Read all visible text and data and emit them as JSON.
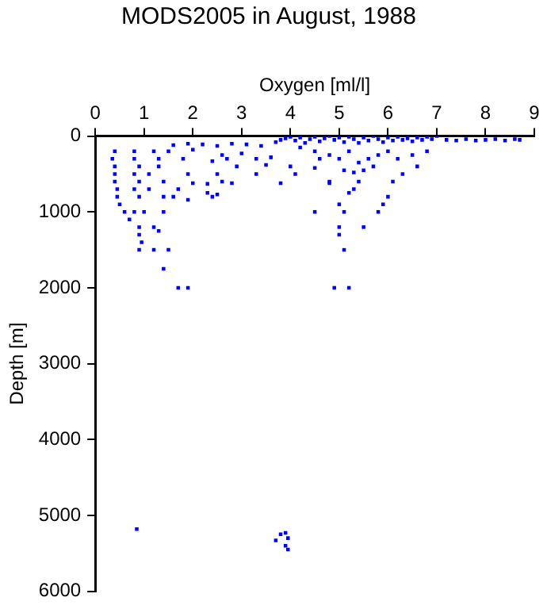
{
  "chart_data": {
    "type": "scatter",
    "title": "MODS2005 in August, 1988",
    "xlabel": "Oxygen [ml/l]",
    "ylabel": "Depth [m]",
    "xlim": [
      0,
      9
    ],
    "xticks": [
      0,
      1,
      2,
      3,
      4,
      5,
      6,
      7,
      8,
      9
    ],
    "ylim": [
      6000,
      0
    ],
    "yticks": [
      0,
      1000,
      2000,
      3000,
      4000,
      5000,
      6000
    ],
    "grid": false,
    "marker": "square",
    "series": [
      {
        "color": "#0000ff",
        "x": [
          3.7,
          3.8,
          3.9,
          4.0,
          4.1,
          4.2,
          4.3,
          4.4,
          4.5,
          4.6,
          4.7,
          4.8,
          4.9,
          5.0,
          5.1,
          5.2,
          5.3,
          5.4,
          5.5,
          5.6,
          5.7,
          5.8,
          5.9,
          6.0,
          6.1,
          6.2,
          6.3,
          6.4,
          6.5,
          6.6,
          6.7,
          6.8,
          6.9,
          7.0,
          7.2,
          7.4,
          7.6,
          7.8,
          8.0,
          8.2,
          8.4,
          8.6,
          8.7,
          4.2,
          4.5,
          4.8,
          5.0,
          5.2,
          5.4,
          5.5,
          5.6,
          5.8,
          6.0,
          5.1,
          5.3,
          4.6,
          5.7,
          6.2,
          6.5,
          6.8,
          1.6,
          1.9,
          2.2,
          2.5,
          2.8,
          3.1,
          3.4,
          2.0,
          2.6,
          3.0,
          3.3,
          3.6,
          2.4,
          2.7,
          1.8,
          2.9,
          3.5,
          4.0,
          4.5,
          2.5,
          1.9,
          3.3,
          4.1,
          2.0,
          2.3,
          2.6,
          2.8,
          3.8,
          4.8,
          2.4,
          2.5,
          1.7,
          2.3,
          1.9,
          0.4,
          0.8,
          1.2,
          1.5,
          0.35,
          0.8,
          1.3,
          0.4,
          0.9,
          1.3,
          0.4,
          0.8,
          1.1,
          0.4,
          0.9,
          1.4,
          0.45,
          0.8,
          1.1,
          0.45,
          0.9,
          1.4,
          1.6,
          0.5,
          0.6,
          0.8,
          1.0,
          1.4,
          0.7,
          0.9,
          1.2,
          1.3,
          0.9,
          0.95,
          0.9,
          1.2,
          1.5,
          1.4,
          1.7,
          1.9,
          5.0,
          5.1,
          5.0,
          5.0,
          5.1,
          4.9,
          5.2,
          4.5,
          5.5,
          5.8,
          5.9,
          6.0,
          6.1,
          6.3,
          6.6,
          5.4,
          5.2,
          5.3,
          4.8,
          0.85,
          3.7,
          3.8,
          3.9,
          3.95,
          3.9,
          3.95
        ],
        "values": [
          80,
          50,
          30,
          10,
          60,
          20,
          90,
          40,
          10,
          70,
          30,
          0,
          50,
          20,
          80,
          10,
          40,
          90,
          20,
          60,
          0,
          40,
          80,
          20,
          60,
          10,
          50,
          30,
          70,
          20,
          50,
          10,
          40,
          0,
          50,
          60,
          40,
          60,
          50,
          40,
          60,
          40,
          50,
          150,
          200,
          250,
          300,
          200,
          350,
          450,
          300,
          250,
          200,
          450,
          480,
          300,
          400,
          300,
          250,
          200,
          120,
          100,
          110,
          130,
          100,
          110,
          130,
          180,
          250,
          230,
          300,
          280,
          330,
          300,
          300,
          400,
          380,
          400,
          420,
          500,
          500,
          500,
          500,
          620,
          630,
          600,
          620,
          620,
          620,
          800,
          770,
          700,
          750,
          840,
          200,
          200,
          200,
          200,
          300,
          300,
          300,
          400,
          400,
          400,
          500,
          500,
          500,
          600,
          600,
          600,
          700,
          700,
          700,
          800,
          800,
          800,
          800,
          900,
          1000,
          1000,
          1000,
          1000,
          1100,
          1200,
          1200,
          1250,
          1300,
          1400,
          1500,
          1500,
          1500,
          1750,
          2000,
          2000,
          900,
          1000,
          1200,
          1300,
          1500,
          2000,
          2000,
          1000,
          1200,
          1000,
          900,
          800,
          600,
          500,
          400,
          600,
          750,
          700,
          600,
          5180,
          5330,
          5250,
          5230,
          5300,
          5400,
          5450
        ]
      }
    ]
  }
}
